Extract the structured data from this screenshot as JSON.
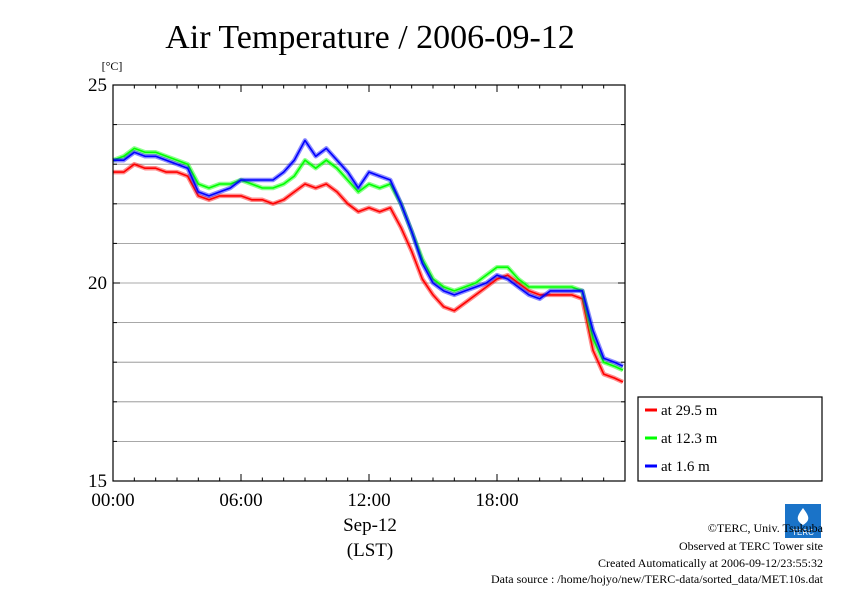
{
  "chart_data": {
    "type": "line",
    "title": "Air Temperature / 2006-09-12",
    "unit": "[°C]",
    "ylim": [
      15,
      25
    ],
    "yticks": [
      15,
      20,
      25
    ],
    "xlim": [
      0,
      24
    ],
    "xticks": [
      {
        "v": 0,
        "label": "00:00"
      },
      {
        "v": 6,
        "label": "06:00"
      },
      {
        "v": 12,
        "label": "12:00"
      },
      {
        "v": 18,
        "label": "18:00"
      }
    ],
    "xlabel_date": "Sep-12",
    "xlabel_tz": "(LST)",
    "grid": true,
    "legend_position": "bottom-right",
    "series": [
      {
        "name": "at 29.5 m",
        "color": "#ff0000",
        "points": [
          [
            0,
            22.8
          ],
          [
            0.5,
            22.8
          ],
          [
            1,
            23.0
          ],
          [
            1.5,
            22.9
          ],
          [
            2,
            22.9
          ],
          [
            2.5,
            22.8
          ],
          [
            3,
            22.8
          ],
          [
            3.5,
            22.7
          ],
          [
            4,
            22.2
          ],
          [
            4.5,
            22.1
          ],
          [
            5,
            22.2
          ],
          [
            5.5,
            22.2
          ],
          [
            6,
            22.2
          ],
          [
            6.5,
            22.1
          ],
          [
            7,
            22.1
          ],
          [
            7.5,
            22.0
          ],
          [
            8,
            22.1
          ],
          [
            8.5,
            22.3
          ],
          [
            9,
            22.5
          ],
          [
            9.5,
            22.4
          ],
          [
            10,
            22.5
          ],
          [
            10.5,
            22.3
          ],
          [
            11,
            22.0
          ],
          [
            11.5,
            21.8
          ],
          [
            12,
            21.9
          ],
          [
            12.5,
            21.8
          ],
          [
            13,
            21.9
          ],
          [
            13.5,
            21.4
          ],
          [
            14,
            20.8
          ],
          [
            14.5,
            20.1
          ],
          [
            15,
            19.7
          ],
          [
            15.5,
            19.4
          ],
          [
            16,
            19.3
          ],
          [
            16.5,
            19.5
          ],
          [
            17,
            19.7
          ],
          [
            17.5,
            19.9
          ],
          [
            18,
            20.1
          ],
          [
            18.5,
            20.2
          ],
          [
            19,
            20.0
          ],
          [
            19.5,
            19.8
          ],
          [
            20,
            19.7
          ],
          [
            20.5,
            19.7
          ],
          [
            21,
            19.7
          ],
          [
            21.5,
            19.7
          ],
          [
            22,
            19.6
          ],
          [
            22.5,
            18.3
          ],
          [
            23,
            17.7
          ],
          [
            23.5,
            17.6
          ],
          [
            23.9,
            17.5
          ]
        ]
      },
      {
        "name": "at 12.3 m",
        "color": "#00ff00",
        "points": [
          [
            0,
            23.1
          ],
          [
            0.5,
            23.2
          ],
          [
            1,
            23.4
          ],
          [
            1.5,
            23.3
          ],
          [
            2,
            23.3
          ],
          [
            2.5,
            23.2
          ],
          [
            3,
            23.1
          ],
          [
            3.5,
            23.0
          ],
          [
            4,
            22.5
          ],
          [
            4.5,
            22.4
          ],
          [
            5,
            22.5
          ],
          [
            5.5,
            22.5
          ],
          [
            6,
            22.6
          ],
          [
            6.5,
            22.5
          ],
          [
            7,
            22.4
          ],
          [
            7.5,
            22.4
          ],
          [
            8,
            22.5
          ],
          [
            8.5,
            22.7
          ],
          [
            9,
            23.1
          ],
          [
            9.5,
            22.9
          ],
          [
            10,
            23.1
          ],
          [
            10.5,
            22.9
          ],
          [
            11,
            22.6
          ],
          [
            11.5,
            22.3
          ],
          [
            12,
            22.5
          ],
          [
            12.5,
            22.4
          ],
          [
            13,
            22.5
          ],
          [
            13.5,
            22.0
          ],
          [
            14,
            21.3
          ],
          [
            14.5,
            20.6
          ],
          [
            15,
            20.1
          ],
          [
            15.5,
            19.9
          ],
          [
            16,
            19.8
          ],
          [
            16.5,
            19.9
          ],
          [
            17,
            20.0
          ],
          [
            17.5,
            20.2
          ],
          [
            18,
            20.4
          ],
          [
            18.5,
            20.4
          ],
          [
            19,
            20.1
          ],
          [
            19.5,
            19.9
          ],
          [
            20,
            19.9
          ],
          [
            20.5,
            19.9
          ],
          [
            21,
            19.9
          ],
          [
            21.5,
            19.9
          ],
          [
            22,
            19.8
          ],
          [
            22.5,
            18.6
          ],
          [
            23,
            18.0
          ],
          [
            23.5,
            17.9
          ],
          [
            23.9,
            17.8
          ]
        ]
      },
      {
        "name": "at 1.6 m",
        "color": "#0000ff",
        "points": [
          [
            0,
            23.1
          ],
          [
            0.5,
            23.1
          ],
          [
            1,
            23.3
          ],
          [
            1.5,
            23.2
          ],
          [
            2,
            23.2
          ],
          [
            2.5,
            23.1
          ],
          [
            3,
            23.0
          ],
          [
            3.5,
            22.9
          ],
          [
            4,
            22.3
          ],
          [
            4.5,
            22.2
          ],
          [
            5,
            22.3
          ],
          [
            5.5,
            22.4
          ],
          [
            6,
            22.6
          ],
          [
            6.5,
            22.6
          ],
          [
            7,
            22.6
          ],
          [
            7.5,
            22.6
          ],
          [
            8,
            22.8
          ],
          [
            8.5,
            23.1
          ],
          [
            9,
            23.6
          ],
          [
            9.5,
            23.2
          ],
          [
            10,
            23.4
          ],
          [
            10.5,
            23.1
          ],
          [
            11,
            22.8
          ],
          [
            11.5,
            22.4
          ],
          [
            12,
            22.8
          ],
          [
            12.5,
            22.7
          ],
          [
            13,
            22.6
          ],
          [
            13.5,
            22.0
          ],
          [
            14,
            21.3
          ],
          [
            14.5,
            20.5
          ],
          [
            15,
            20.0
          ],
          [
            15.5,
            19.8
          ],
          [
            16,
            19.7
          ],
          [
            16.5,
            19.8
          ],
          [
            17,
            19.9
          ],
          [
            17.5,
            20.0
          ],
          [
            18,
            20.2
          ],
          [
            18.5,
            20.1
          ],
          [
            19,
            19.9
          ],
          [
            19.5,
            19.7
          ],
          [
            20,
            19.6
          ],
          [
            20.5,
            19.8
          ],
          [
            21,
            19.8
          ],
          [
            21.5,
            19.8
          ],
          [
            22,
            19.8
          ],
          [
            22.5,
            18.8
          ],
          [
            23,
            18.1
          ],
          [
            23.5,
            18.0
          ],
          [
            23.9,
            17.9
          ]
        ]
      }
    ]
  },
  "footer": {
    "org": "©TERC, Univ. Tsukuba",
    "site": "Observed at TERC Tower site",
    "created": "Created Automatically at 2006-09-12/23:55:32",
    "source": "Data source : /home/hojyo/new/TERC-data/sorted_data/MET.10s.dat",
    "logo_text": "TERC"
  }
}
